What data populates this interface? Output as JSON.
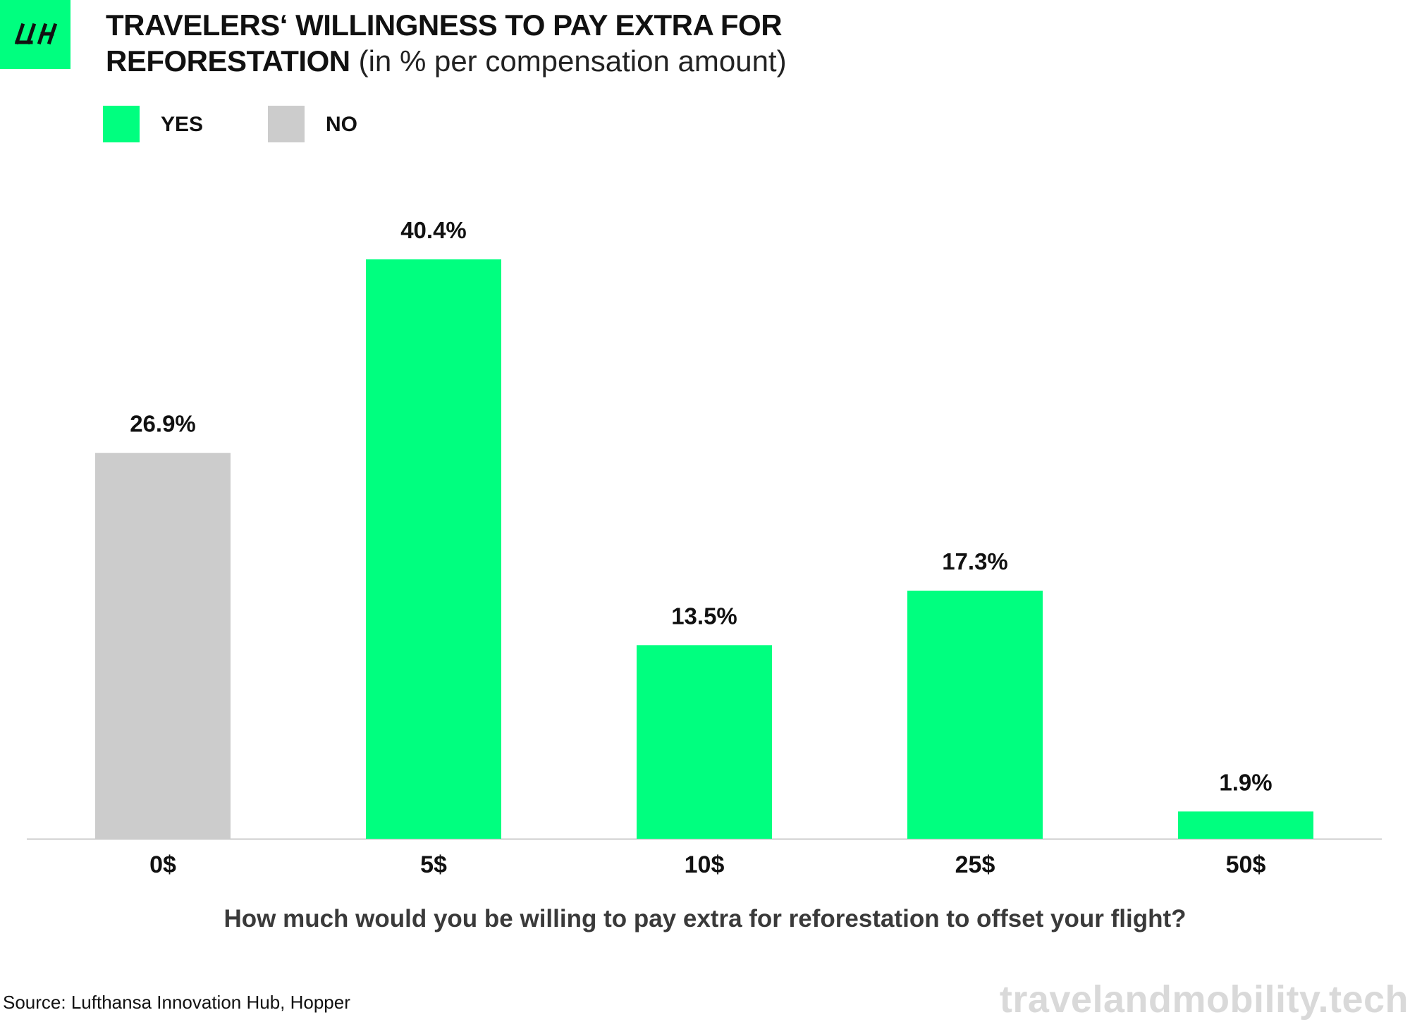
{
  "logo": {
    "text": "LH",
    "color": "#00ff7f"
  },
  "title_line1": "TRAVELERS‘ WILLINGNESS TO PAY EXTRA FOR",
  "title_line2": "REFORESTATION",
  "subtitle": "(in % per compensation amount)",
  "legend": [
    {
      "label": "YES",
      "color": "#00ff7f"
    },
    {
      "label": "NO",
      "color": "#cccccc"
    }
  ],
  "chart_data": {
    "type": "bar",
    "title": "TRAVELERS‘ WILLINGNESS TO PAY EXTRA FOR REFORESTATION",
    "subtitle": "(in % per compensation amount)",
    "categories": [
      "0$",
      "5$",
      "10$",
      "25$",
      "50$"
    ],
    "values": [
      26.9,
      40.4,
      13.5,
      17.3,
      1.9
    ],
    "value_labels": [
      "26.9%",
      "40.4%",
      "13.5%",
      "17.3%",
      "1.9%"
    ],
    "bar_groups": [
      "NO",
      "YES",
      "YES",
      "YES",
      "YES"
    ],
    "colors": {
      "YES": "#00ff7f",
      "NO": "#cccccc"
    },
    "xlabel": "How much would you be willing to pay extra for reforestation to offset your flight?",
    "ylabel": "",
    "ylim": [
      0,
      40.4
    ],
    "grid": false,
    "legend_position": "top-left"
  },
  "source": "Source: Lufthansa Innovation Hub, Hopper",
  "watermark": "travelandmobility.tech"
}
